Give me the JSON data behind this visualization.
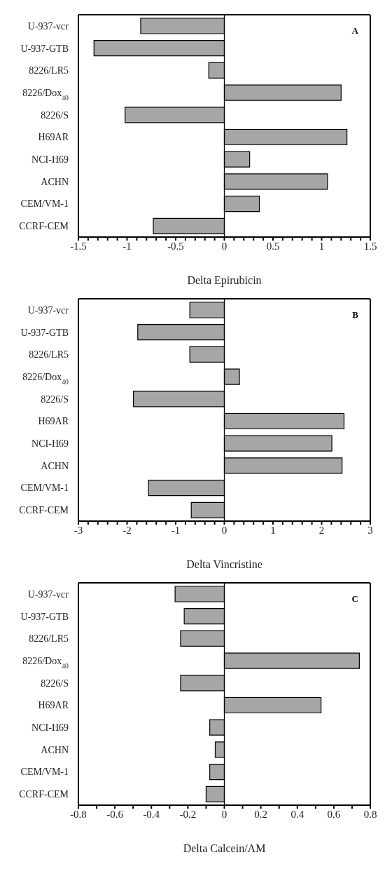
{
  "chart_data": [
    {
      "type": "bar",
      "orientation": "horizontal",
      "xlabel": "Delta Epirubicin",
      "annotations": [
        "A"
      ],
      "categories": [
        "U-937-vcr",
        "U-937-GTB",
        "8226/LR5",
        "8226/Dox$_{40}$",
        "8226/S",
        "H69AR",
        "NCI-H69",
        "ACHN",
        "CEM/VM-1",
        "CCRF-CEM"
      ],
      "values": [
        -0.86,
        -1.34,
        -0.16,
        1.2,
        -1.02,
        1.26,
        0.26,
        1.06,
        0.36,
        -0.73
      ],
      "color": "#a6a6a6",
      "xlim": [
        -1.5,
        1.5
      ],
      "xticks": [
        -1.5,
        {
          "value": -1.4,
          "label": null
        },
        {
          "value": -1.3,
          "label": null
        },
        {
          "value": -1.2,
          "label": null
        },
        {
          "value": -1.1,
          "label": null
        },
        -1,
        {
          "value": -0.9,
          "label": null
        },
        {
          "value": -0.8,
          "label": null
        },
        {
          "value": -0.7,
          "label": null
        },
        {
          "value": -0.6,
          "label": null
        },
        -0.5,
        {
          "value": -0.4,
          "label": null
        },
        {
          "value": -0.3,
          "label": null
        },
        {
          "value": -0.2,
          "label": null
        },
        {
          "value": -0.1,
          "label": null
        },
        0,
        {
          "value": 0.1,
          "label": null
        },
        {
          "value": 0.2,
          "label": null
        },
        {
          "value": 0.3,
          "label": null
        },
        {
          "value": 0.4,
          "label": null
        },
        0.5,
        {
          "value": 0.6,
          "label": null
        },
        {
          "value": 0.7,
          "label": null
        },
        {
          "value": 0.8,
          "label": null
        },
        {
          "value": 0.9,
          "label": null
        },
        1,
        {
          "value": 1.1,
          "label": null
        },
        {
          "value": 1.2,
          "label": null
        },
        {
          "value": 1.3,
          "label": null
        },
        {
          "value": 1.4,
          "label": null
        },
        1.5
      ],
      "ref_lines": [
        {
          "axis": "x",
          "value": 0,
          "color": "#000000"
        }
      ],
      "grid": false,
      "legend": false
    },
    {
      "type": "bar",
      "orientation": "horizontal",
      "xlabel": "Delta Vincristine",
      "annotations": [
        "B"
      ],
      "categories": [
        "U-937-vcr",
        "U-937-GTB",
        "8226/LR5",
        "8226/Dox$_{40}$",
        "8226/S",
        "H69AR",
        "NCI-H69",
        "ACHN",
        "CEM/VM-1",
        "CCRF-CEM"
      ],
      "values": [
        -0.71,
        -1.78,
        -0.71,
        0.31,
        -1.87,
        2.46,
        2.21,
        2.42,
        -1.56,
        -0.68
      ],
      "color": "#a6a6a6",
      "xlim": [
        -3,
        3
      ],
      "xticks": [
        -3,
        {
          "value": -2.8,
          "label": null
        },
        {
          "value": -2.6,
          "label": null
        },
        {
          "value": -2.4,
          "label": null
        },
        {
          "value": -2.2,
          "label": null
        },
        -2,
        {
          "value": -1.8,
          "label": null
        },
        {
          "value": -1.6,
          "label": null
        },
        {
          "value": -1.4,
          "label": null
        },
        {
          "value": -1.2,
          "label": null
        },
        -1,
        {
          "value": -0.8,
          "label": null
        },
        {
          "value": -0.6,
          "label": null
        },
        {
          "value": -0.4,
          "label": null
        },
        {
          "value": -0.2,
          "label": null
        },
        0,
        {
          "value": 0.2,
          "label": null
        },
        {
          "value": 0.4,
          "label": null
        },
        {
          "value": 0.6,
          "label": null
        },
        {
          "value": 0.8,
          "label": null
        },
        1,
        {
          "value": 1.2,
          "label": null
        },
        {
          "value": 1.4,
          "label": null
        },
        {
          "value": 1.6,
          "label": null
        },
        {
          "value": 1.8,
          "label": null
        },
        2,
        {
          "value": 2.2,
          "label": null
        },
        {
          "value": 2.4,
          "label": null
        },
        {
          "value": 2.6,
          "label": null
        },
        {
          "value": 2.8,
          "label": null
        },
        3
      ],
      "ref_lines": [
        {
          "axis": "x",
          "value": 0,
          "color": "#000000"
        }
      ],
      "grid": false,
      "legend": false
    },
    {
      "type": "bar",
      "orientation": "horizontal",
      "xlabel": "Delta Calcein/AM",
      "annotations": [
        "C"
      ],
      "categories": [
        "U-937-vcr",
        "U-937-GTB",
        "8226/LR5",
        "8226/Dox$_{40}$",
        "8226/S",
        "H69AR",
        "NCI-H69",
        "ACHN",
        "CEM/VM-1",
        "CCRF-CEM"
      ],
      "values": [
        -0.27,
        -0.22,
        -0.24,
        0.74,
        -0.24,
        0.53,
        -0.08,
        -0.05,
        -0.08,
        -0.1
      ],
      "color": "#a6a6a6",
      "xlim": [
        -0.8,
        0.8
      ],
      "xticks": [
        -0.8,
        {
          "value": -0.7,
          "label": null
        },
        -0.6,
        {
          "value": -0.5,
          "label": null
        },
        -0.4,
        {
          "value": -0.3,
          "label": null
        },
        -0.2,
        {
          "value": -0.1,
          "label": null
        },
        0,
        {
          "value": 0.1,
          "label": null
        },
        0.2,
        {
          "value": 0.3,
          "label": null
        },
        0.4,
        {
          "value": 0.5,
          "label": null
        },
        0.6,
        {
          "value": 0.7,
          "label": null
        },
        0.8
      ],
      "ref_lines": [
        {
          "axis": "x",
          "value": 0,
          "color": "#000000"
        }
      ],
      "grid": false,
      "legend": false
    }
  ]
}
